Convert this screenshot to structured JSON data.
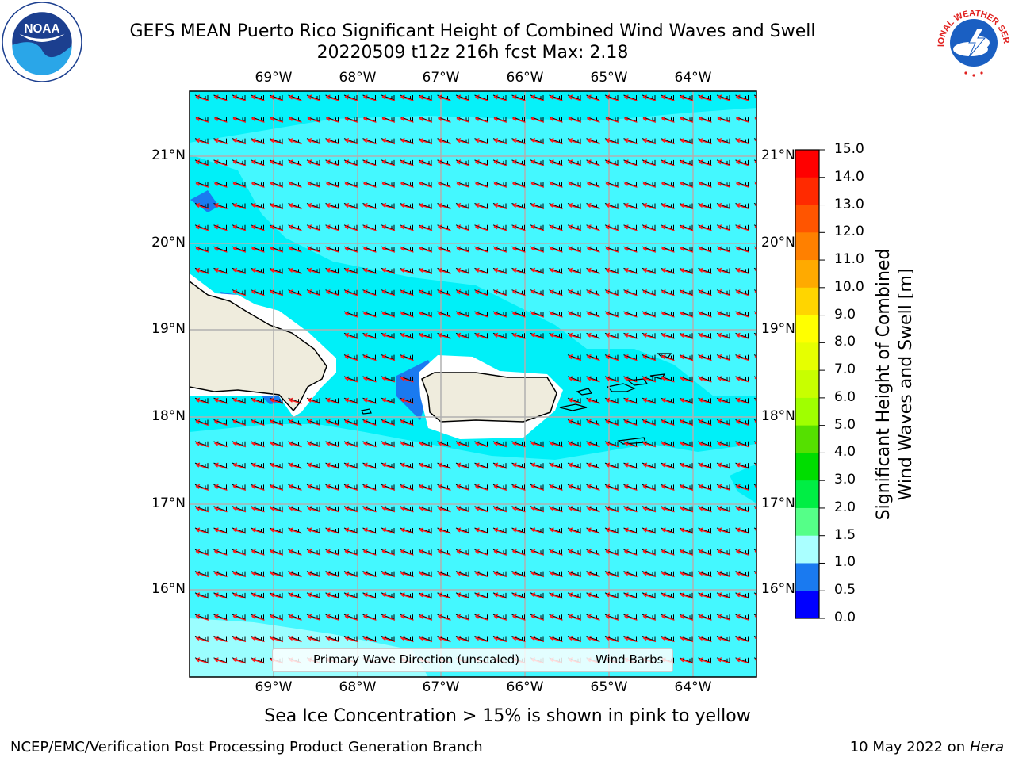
{
  "title": {
    "line1": "GEFS MEAN Puerto Rico Significant Height of Combined Wind Waves and Swell",
    "line2": "20220509 t12z 216h fcst   Max: 2.18"
  },
  "logos": {
    "left": {
      "icon": "noaa-logo",
      "text": "NOAA"
    },
    "right": {
      "icon": "national-weather-service-logo",
      "text": "NATIONAL WEATHER SERVICE"
    }
  },
  "map": {
    "lon_labels": [
      "69°W",
      "68°W",
      "67°W",
      "66°W",
      "65°W",
      "64°W"
    ],
    "lat_labels_left": [
      "21°N",
      "20°N",
      "19°N",
      "18°N",
      "17°N",
      "16°N"
    ],
    "lat_labels_right": [
      "21°N",
      "20°N",
      "19°N",
      "18°N",
      "17°N",
      "16°N"
    ],
    "extent": {
      "lon_min": -70.0,
      "lon_max": -63.25,
      "lat_min": 15.0,
      "lat_max": 21.75
    },
    "grid": true,
    "land_color": "#efecdd",
    "sea_color_main": "#44f8ff",
    "sea_color_low": "#00f0f8",
    "sea_color_shelter": "#1a7af0",
    "arrow_color": "#ff1a1a",
    "barb_color": "#000000",
    "barb_direction": "easterly"
  },
  "legend": {
    "primary_wave": "Primary Wave Direction (unscaled)",
    "wind_barbs": "Wind Barbs"
  },
  "colorbar": {
    "ticks": [
      "15.0",
      "14.0",
      "13.0",
      "12.0",
      "11.0",
      "10.0",
      "9.0",
      "8.0",
      "7.0",
      "6.0",
      "5.0",
      "4.0",
      "3.0",
      "2.0",
      "1.5",
      "1.0",
      "0.5",
      "0.0"
    ],
    "colors": [
      "#ff0000",
      "#ff2a00",
      "#ff5500",
      "#ff8000",
      "#ffaa00",
      "#ffd500",
      "#ffff00",
      "#e6ff00",
      "#c8ff00",
      "#a0ff00",
      "#55e000",
      "#00dd00",
      "#00ee44",
      "#55ff88",
      "#aaffff",
      "#44f8ff",
      "#00f0f8",
      "#1a7af0",
      "#0000ff"
    ],
    "label": "Significant Height of Combined\nWind Waves and Swell [m]"
  },
  "footer": {
    "ice_note": "Sea Ice Concentration > 15% is shown in pink to yellow",
    "credit": "NCEP/EMC/Verification Post Processing Product Generation Branch",
    "date": "10 May 2022 on",
    "machine": "Hera"
  }
}
